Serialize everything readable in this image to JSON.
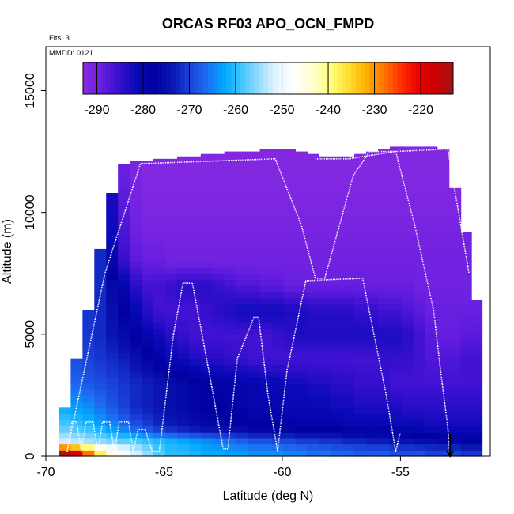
{
  "chart_data": {
    "type": "heatmap",
    "title": "ORCAS RF03 APO_OCN_FMPD",
    "annotations": {
      "flights": "Flts: 3",
      "date": "MMDD: 0121"
    },
    "xlabel": "Latitude (deg N)",
    "ylabel": "Altitude (m)",
    "xlim": [
      -70,
      -51.2
    ],
    "ylim": [
      0,
      16800
    ],
    "x_ticks": [
      -70,
      -65,
      -60,
      -55
    ],
    "y_ticks": [
      0,
      5000,
      10000,
      15000
    ],
    "colorbar": {
      "range": [
        -293,
        -213
      ],
      "ticks": [
        -290,
        -280,
        -270,
        -260,
        -250,
        -240,
        -230,
        -220
      ],
      "colors": [
        "#8a2be2",
        "#6a1fe0",
        "#3a10d0",
        "#0a0ab8",
        "#0000a0",
        "#0a14b0",
        "#1a3fd8",
        "#1e6cf0",
        "#00a6ff",
        "#40c6ff",
        "#9adcff",
        "#e6f5ff",
        "#ffffff",
        "#ffffd0",
        "#ffff80",
        "#ffe033",
        "#ffb300",
        "#ff7a00",
        "#ff3300",
        "#ee0000",
        "#cc0000",
        "#a31515"
      ]
    },
    "columns_lat": [
      -69.2,
      -68.7,
      -68.2,
      -67.7,
      -67.2,
      -66.7,
      -66.2,
      -65.7,
      -65.2,
      -64.7,
      -64.2,
      -63.7,
      -63.2,
      -62.7,
      -62.2,
      -61.7,
      -61.2,
      -60.7,
      -60.2,
      -59.7,
      -59.2,
      -58.7,
      -58.2,
      -57.7,
      -57.2,
      -56.7,
      -56.2,
      -55.7,
      -55.2,
      -54.7,
      -54.2,
      -53.7,
      -53.2,
      -52.7,
      -52.2,
      -51.8
    ],
    "columns_top": [
      2000,
      4000,
      6000,
      8500,
      10800,
      12000,
      12100,
      12100,
      12200,
      12200,
      12300,
      12300,
      12400,
      12400,
      12500,
      12500,
      12500,
      12600,
      12600,
      12600,
      12500,
      12400,
      12300,
      12300,
      12300,
      12400,
      12500,
      12600,
      12700,
      12700,
      12700,
      12700,
      12600,
      11000,
      9200,
      6400
    ],
    "rows": [
      {
        "alt": 200,
        "values": [
          -213,
          -218,
          -228,
          -238,
          -245,
          -248,
          -252,
          -255,
          -258,
          -260,
          -260,
          -261,
          -262,
          -262,
          -263,
          -263,
          -264,
          -264,
          -264,
          -265,
          -265,
          -266,
          -266,
          -267,
          -267,
          -268,
          -268,
          -268,
          -269,
          -269,
          -269,
          -270,
          -270,
          -270,
          -271,
          -271
        ]
      },
      {
        "alt": 600,
        "values": [
          -252,
          -253,
          -254,
          -255,
          -256,
          -257,
          -258,
          -259,
          -260,
          -261,
          -262,
          -263,
          -264,
          -265,
          -266,
          -267,
          -268,
          -268,
          -269,
          -269,
          -270,
          -270,
          -271,
          -271,
          -272,
          -272,
          -273,
          -273,
          -274,
          -274,
          -275,
          -275,
          -276,
          -276,
          -277,
          -277
        ]
      },
      {
        "alt": 1200,
        "values": [
          -258,
          -259,
          -260,
          -262,
          -264,
          -266,
          -268,
          -270,
          -272,
          -273,
          -274,
          -275,
          -276,
          -276,
          -277,
          -277,
          -278,
          -278,
          -278,
          -278,
          -279,
          -279,
          -279,
          -279,
          -280,
          -280,
          -280,
          -280,
          -281,
          -281,
          -281,
          -282,
          -282,
          -282,
          -282,
          -282
        ]
      },
      {
        "alt": 2000,
        "values": [
          -262,
          -263,
          -264,
          -266,
          -268,
          -270,
          -272,
          -273,
          -274,
          -275,
          -276,
          -277,
          -278,
          -278,
          -279,
          -279,
          -280,
          -280,
          -280,
          -281,
          -281,
          -281,
          -281,
          -282,
          -282,
          -283,
          -283,
          -283,
          -283,
          -284,
          -284,
          -284,
          -284,
          -284,
          -284,
          -284
        ]
      },
      {
        "alt": 3000,
        "values": [
          -266,
          -267,
          -268,
          -269,
          -270,
          -271,
          -272,
          -273,
          -274,
          -275,
          -276,
          -277,
          -278,
          -279,
          -279,
          -280,
          -280,
          -281,
          -281,
          -282,
          -282,
          -283,
          -283,
          -284,
          -284,
          -285,
          -285,
          -285,
          -286,
          -286,
          -286,
          -286,
          -286,
          -286,
          -286,
          -286
        ]
      },
      {
        "alt": 4000,
        "values": [
          -268,
          -269,
          -270,
          -271,
          -272,
          -273,
          -275,
          -277,
          -279,
          -281,
          -282,
          -283,
          -284,
          -284,
          -285,
          -285,
          -286,
          -286,
          -286,
          -286,
          -286,
          -286,
          -286,
          -286,
          -286,
          -286,
          -286,
          -285,
          -285,
          -285,
          -286,
          -287,
          -287,
          -287,
          -286,
          -286
        ]
      },
      {
        "alt": 5000,
        "values": [
          -270,
          -270,
          -271,
          -272,
          -274,
          -276,
          -278,
          -280,
          -282,
          -284,
          -285,
          -286,
          -286,
          -286,
          -286,
          -286,
          -286,
          -286,
          -285,
          -284,
          -283,
          -283,
          -283,
          -283,
          -283,
          -283,
          -283,
          -283,
          -283,
          -284,
          -286,
          -288,
          -289,
          -289,
          -288,
          -288
        ]
      },
      {
        "alt": 6000,
        "values": [
          -270,
          -270,
          -271,
          -272,
          -275,
          -278,
          -281,
          -284,
          -286,
          -286,
          -286,
          -286,
          -285,
          -284,
          -283,
          -282,
          -282,
          -282,
          -282,
          -283,
          -283,
          -284,
          -284,
          -284,
          -284,
          -285,
          -285,
          -286,
          -286,
          -287,
          -288,
          -289,
          -289,
          -289,
          -289,
          -289
        ]
      },
      {
        "alt": 7000,
        "values": [
          -270,
          -270,
          -271,
          -272,
          -276,
          -280,
          -284,
          -286,
          -286,
          -285,
          -284,
          -284,
          -284,
          -285,
          -286,
          -287,
          -287,
          -288,
          -288,
          -289,
          -289,
          -289,
          -289,
          -289,
          -289,
          -289,
          -289,
          -289,
          -289,
          -289,
          -290,
          -290,
          -290,
          -290,
          -290,
          -290
        ]
      },
      {
        "alt": 8000,
        "values": [
          -270,
          -270,
          -271,
          -272,
          -280,
          -285,
          -288,
          -289,
          -289,
          -290,
          -290,
          -290,
          -290,
          -290,
          -290,
          -290,
          -290,
          -290,
          -290,
          -290,
          -290,
          -290,
          -290,
          -290,
          -290,
          -290,
          -290,
          -290,
          -290,
          -290,
          -290,
          -290,
          -290,
          -290,
          -290,
          -290
        ]
      },
      {
        "alt": 9500,
        "values": [
          -270,
          -270,
          -271,
          -272,
          -282,
          -287,
          -290,
          -291,
          -291,
          -291,
          -291,
          -291,
          -291,
          -291,
          -291,
          -291,
          -291,
          -291,
          -291,
          -291,
          -291,
          -291,
          -291,
          -291,
          -291,
          -291,
          -291,
          -291,
          -291,
          -291,
          -291,
          -291,
          -291,
          -291,
          -291,
          -291
        ]
      },
      {
        "alt": 11500,
        "values": [
          -270,
          -270,
          -271,
          -272,
          -283,
          -289,
          -291,
          -292,
          -292,
          -292,
          -292,
          -292,
          -292,
          -292,
          -292,
          -292,
          -292,
          -292,
          -292,
          -292,
          -292,
          -292,
          -292,
          -292,
          -292,
          -292,
          -292,
          -292,
          -292,
          -292,
          -292,
          -292,
          -292,
          -292,
          -292,
          -292
        ]
      }
    ],
    "flight_track": [
      [
        -69.1,
        200
      ],
      [
        -68.9,
        1400
      ],
      [
        -68.7,
        1400
      ],
      [
        -68.5,
        200
      ],
      [
        -68.3,
        1400
      ],
      [
        -68.0,
        1400
      ],
      [
        -67.8,
        200
      ],
      [
        -67.6,
        1400
      ],
      [
        -67.3,
        1400
      ],
      [
        -67.1,
        200
      ],
      [
        -66.9,
        1400
      ],
      [
        -66.5,
        1400
      ],
      [
        -66.3,
        200
      ],
      [
        -66.1,
        1100
      ],
      [
        -65.8,
        1100
      ],
      [
        -65.5,
        200
      ],
      [
        -65.2,
        200
      ],
      [
        -64.6,
        5000
      ],
      [
        -64.2,
        7100
      ],
      [
        -63.8,
        7100
      ],
      [
        -63.2,
        4000
      ],
      [
        -62.5,
        300
      ],
      [
        -62.3,
        300
      ],
      [
        -61.9,
        4000
      ],
      [
        -61.2,
        5700
      ],
      [
        -61.0,
        5700
      ],
      [
        -60.6,
        2500
      ],
      [
        -60.2,
        200
      ],
      [
        -59.8,
        3500
      ],
      [
        -59.0,
        7200
      ],
      [
        -56.6,
        7300
      ],
      [
        -55.6,
        2500
      ],
      [
        -55.2,
        200
      ],
      [
        -55.0,
        1000
      ]
    ],
    "flight_track_2": [
      [
        -69.1,
        200
      ],
      [
        -67.5,
        7500
      ],
      [
        -66.0,
        12000
      ],
      [
        -60.3,
        12200
      ],
      [
        -59.2,
        9500
      ],
      [
        -58.6,
        7300
      ],
      [
        -58.2,
        7300
      ],
      [
        -57.0,
        11500
      ],
      [
        -56.3,
        12500
      ],
      [
        -55.2,
        12500
      ],
      [
        -54.4,
        9500
      ],
      [
        -53.6,
        6000
      ],
      [
        -53.3,
        3500
      ],
      [
        -53.0,
        1200
      ],
      [
        -52.9,
        0
      ]
    ],
    "flight_track_3": [
      [
        -58.6,
        12200
      ],
      [
        -57.2,
        12200
      ],
      [
        -55.2,
        12500
      ],
      [
        -53.0,
        12600
      ],
      [
        -52.1,
        7500
      ]
    ]
  }
}
